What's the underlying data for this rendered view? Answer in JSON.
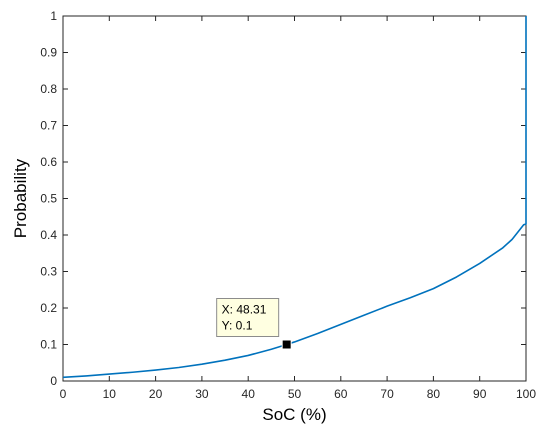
{
  "chart_data": {
    "type": "line",
    "title": "",
    "xlabel": "SoC (%)",
    "ylabel": "Probability",
    "xlim": [
      0,
      100
    ],
    "ylim": [
      0,
      1
    ],
    "x_ticks": [
      "0",
      "10",
      "20",
      "30",
      "40",
      "50",
      "60",
      "70",
      "80",
      "90",
      "100"
    ],
    "y_ticks": [
      "0",
      "0.1",
      "0.2",
      "0.3",
      "0.4",
      "0.5",
      "0.6",
      "0.7",
      "0.8",
      "0.9",
      "1"
    ],
    "grid": false,
    "series": [
      {
        "color": "#0072BD",
        "x": [
          0,
          5,
          10,
          15,
          20,
          25,
          30,
          35,
          40,
          45,
          48.31,
          50,
          55,
          60,
          65,
          70,
          75,
          80,
          85,
          90,
          95,
          97,
          99.5,
          100,
          100
        ],
        "y": [
          0.01,
          0.014,
          0.019,
          0.024,
          0.03,
          0.037,
          0.046,
          0.057,
          0.07,
          0.087,
          0.1,
          0.107,
          0.13,
          0.155,
          0.18,
          0.205,
          0.228,
          0.253,
          0.285,
          0.322,
          0.365,
          0.388,
          0.428,
          0.43,
          1.0
        ]
      }
    ],
    "datatip": {
      "x": 48.31,
      "y": 0.1,
      "x_text": "X: 48.31",
      "y_text": "Y: 0.1"
    }
  }
}
